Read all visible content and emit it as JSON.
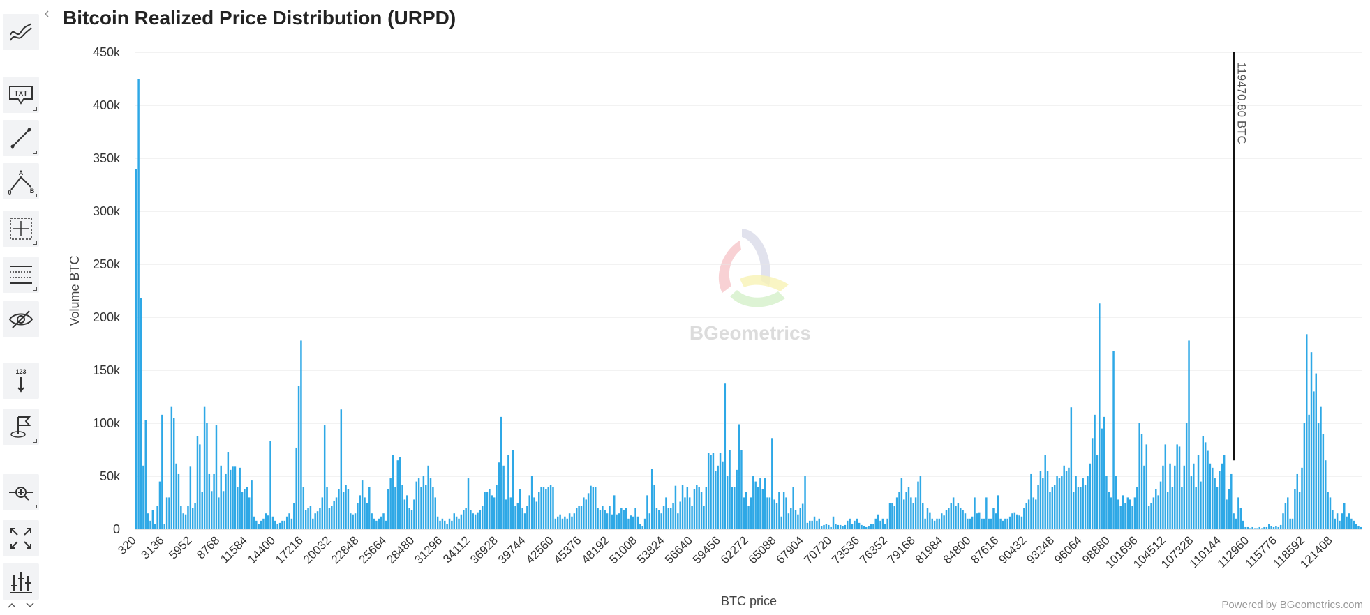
{
  "page": {
    "title": "Bitcoin Realized Price Distribution (URPD)",
    "credit": "Powered by BGeometrics.com",
    "watermark": "BGeometrics",
    "marker_label": "119470.80 BTC",
    "accent_color": "#2ea8e6"
  },
  "toolbar": {
    "items": [
      {
        "name": "trend-lines-tool-button",
        "icon": "trend-lines-icon"
      },
      {
        "name": "text-annotation-tool-button",
        "icon": "txt-callout-icon",
        "label": "TXT"
      },
      {
        "name": "line-tool-button",
        "icon": "line-segment-icon"
      },
      {
        "name": "measure-tool-button",
        "icon": "measure-abc-icon",
        "labels": [
          "A",
          "0",
          "B"
        ]
      },
      {
        "name": "crosshair-tool-button",
        "icon": "crosshair-box-icon"
      },
      {
        "name": "grid-lines-tool-button",
        "icon": "horizontal-lines-icon"
      },
      {
        "name": "toggle-annotations-button",
        "icon": "eye-slash-icon"
      },
      {
        "name": "vertical-counter-tool-button",
        "icon": "vertical-123-icon",
        "label": "123"
      },
      {
        "name": "flag-tool-button",
        "icon": "flag-icon"
      },
      {
        "name": "zoom-tool-button",
        "icon": "zoom-arrows-icon"
      },
      {
        "name": "fullscreen-button",
        "icon": "fullscreen-icon"
      },
      {
        "name": "indicators-button",
        "icon": "sliders-icon"
      }
    ]
  },
  "chart_data": {
    "type": "bar",
    "title": "Bitcoin Realized Price Distribution (URPD)",
    "xlabel": "BTC price",
    "ylabel": "Volume BTC",
    "ylim": [
      0,
      450000
    ],
    "yticks": [
      0,
      50000,
      100000,
      150000,
      200000,
      250000,
      300000,
      350000,
      400000,
      450000
    ],
    "ytick_labels": [
      "0",
      "50k",
      "100k",
      "150k",
      "200k",
      "250k",
      "300k",
      "350k",
      "400k",
      "450k"
    ],
    "xtick_labels": [
      "320",
      "3136",
      "5952",
      "8768",
      "11584",
      "14400",
      "17216",
      "20032",
      "22848",
      "25664",
      "28480",
      "31296",
      "34112",
      "36928",
      "39744",
      "42560",
      "45376",
      "48192",
      "51008",
      "53824",
      "56640",
      "59456",
      "62272",
      "65088",
      "67904",
      "70720",
      "73536",
      "76352",
      "79168",
      "81984",
      "84800",
      "87616",
      "90432",
      "93248",
      "96064",
      "98880",
      "101696",
      "104512",
      "107328",
      "110144",
      "112960",
      "115776",
      "118592",
      "121408"
    ],
    "bin_width": 256,
    "x_start": 320,
    "grid": true,
    "legend": "none",
    "marker": {
      "x": 119470.8,
      "label": "119470.80 BTC",
      "top_value": 450000,
      "bottom_value": 65000
    },
    "values": [
      340000,
      425000,
      218000,
      60000,
      103000,
      15000,
      8000,
      18000,
      5000,
      22000,
      45000,
      108000,
      5000,
      30000,
      30000,
      116000,
      105000,
      62000,
      52000,
      22000,
      15000,
      14000,
      22000,
      59000,
      20000,
      25000,
      88000,
      80000,
      35000,
      116000,
      100000,
      52000,
      36000,
      52000,
      98000,
      30000,
      60000,
      36000,
      52000,
      73000,
      56000,
      59000,
      59000,
      40000,
      58000,
      35000,
      38000,
      40000,
      30000,
      46000,
      12000,
      8000,
      5000,
      8000,
      10000,
      15000,
      13000,
      83000,
      12000,
      8000,
      5000,
      6000,
      8000,
      8000,
      12000,
      15000,
      10000,
      25000,
      77000,
      135000,
      178000,
      40000,
      18000,
      20000,
      22000,
      10000,
      15000,
      17000,
      20000,
      30000,
      98000,
      40000,
      20000,
      22000,
      27000,
      30000,
      38000,
      113000,
      35000,
      42000,
      38000,
      15000,
      14000,
      15000,
      25000,
      32000,
      46000,
      30000,
      25000,
      40000,
      15000,
      10000,
      8000,
      10000,
      12000,
      15000,
      8000,
      38000,
      48000,
      70000,
      40000,
      65000,
      68000,
      42000,
      28000,
      32000,
      20000,
      18000,
      28000,
      45000,
      48000,
      40000,
      50000,
      42000,
      60000,
      48000,
      40000,
      30000,
      12000,
      8000,
      10000,
      8000,
      5000,
      10000,
      8000,
      15000,
      12000,
      10000,
      14000,
      18000,
      20000,
      48000,
      18000,
      15000,
      14000,
      16000,
      18000,
      22000,
      35000,
      35000,
      38000,
      32000,
      30000,
      42000,
      63000,
      106000,
      60000,
      28000,
      70000,
      30000,
      75000,
      22000,
      25000,
      38000,
      20000,
      15000,
      22000,
      32000,
      50000,
      30000,
      26000,
      35000,
      40000,
      40000,
      38000,
      40000,
      42000,
      40000,
      10000,
      12000,
      14000,
      10000,
      12000,
      10000,
      15000,
      12000,
      15000,
      20000,
      22000,
      22000,
      30000,
      28000,
      34000,
      41000,
      40000,
      40000,
      20000,
      18000,
      22000,
      18000,
      15000,
      22000,
      14000,
      32000,
      14000,
      15000,
      20000,
      18000,
      20000,
      10000,
      13000,
      12000,
      20000,
      12000,
      5000,
      3000,
      10000,
      32000,
      15000,
      57000,
      42000,
      20000,
      18000,
      15000,
      22000,
      30000,
      20000,
      20000,
      25000,
      41000,
      15000,
      26000,
      42000,
      30000,
      40000,
      30000,
      22000,
      38000,
      42000,
      40000,
      35000,
      22000,
      40000,
      72000,
      70000,
      72000,
      55000,
      60000,
      72000,
      64000,
      138000,
      50000,
      75000,
      40000,
      40000,
      56000,
      99000,
      75000,
      30000,
      35000,
      22000,
      30000,
      50000,
      45000,
      40000,
      48000,
      38000,
      48000,
      30000,
      30000,
      86000,
      28000,
      25000,
      35000,
      12000,
      35000,
      30000,
      15000,
      20000,
      40000,
      18000,
      14000,
      20000,
      24000,
      50000,
      6000,
      8000,
      8000,
      12000,
      8000,
      10000,
      3000,
      4000,
      5000,
      4000,
      2000,
      12000,
      5000,
      4000,
      4000,
      3000,
      4000,
      8000,
      10000,
      5000,
      8000,
      10000,
      6000,
      4000,
      3000,
      2000,
      3000,
      5000,
      5000,
      10000,
      14000,
      8000,
      10000,
      5000,
      10000,
      25000,
      25000,
      22000,
      30000,
      35000,
      48000,
      28000,
      35000,
      40000,
      30000,
      25000,
      30000,
      45000,
      50000,
      25000,
      10000,
      20000,
      16000,
      10000,
      8000,
      10000,
      10000,
      15000,
      13000,
      18000,
      20000,
      25000,
      30000,
      22000,
      25000,
      20000,
      18000,
      15000,
      10000,
      10000,
      12000,
      30000,
      15000,
      16000,
      10000,
      10000,
      30000,
      10000,
      10000,
      20000,
      15000,
      32000,
      10000,
      8000,
      10000,
      10000,
      12000,
      15000,
      16000,
      14000,
      13000,
      12000,
      20000,
      25000,
      28000,
      52000,
      30000,
      28000,
      42000,
      55000,
      48000,
      70000,
      55000,
      35000,
      40000,
      42000,
      50000,
      48000,
      50000,
      60000,
      55000,
      58000,
      115000,
      35000,
      50000,
      40000,
      40000,
      48000,
      42000,
      50000,
      62000,
      86000,
      108000,
      70000,
      213000,
      95000,
      106000,
      50000,
      35000,
      30000,
      168000,
      50000,
      28000,
      22000,
      32000,
      25000,
      30000,
      28000,
      22000,
      30000,
      40000,
      100000,
      90000,
      60000,
      80000,
      22000,
      25000,
      30000,
      38000,
      32000,
      45000,
      60000,
      80000,
      35000,
      62000,
      40000,
      60000,
      80000,
      78000,
      40000,
      60000,
      100000,
      178000,
      50000,
      62000,
      40000,
      70000,
      45000,
      88000,
      82000,
      74000,
      62000,
      58000,
      48000,
      40000,
      55000,
      62000,
      70000,
      28000,
      38000,
      52000,
      15000,
      10000,
      30000,
      20000,
      8000,
      2000,
      2000,
      1000,
      2000,
      1000,
      1000,
      2000,
      1000,
      2000,
      2000,
      5000,
      3000,
      2000,
      3000,
      2000,
      4000,
      15000,
      25000,
      30000,
      10000,
      10000,
      38000,
      52000,
      35000,
      58000,
      100000,
      184000,
      108000,
      167000,
      130000,
      147000,
      100000,
      116000,
      90000,
      65000,
      35000,
      30000,
      18000,
      10000,
      15000,
      8000,
      15000,
      25000,
      12000,
      15000,
      10000,
      8000,
      5000,
      3000,
      2000
    ]
  }
}
